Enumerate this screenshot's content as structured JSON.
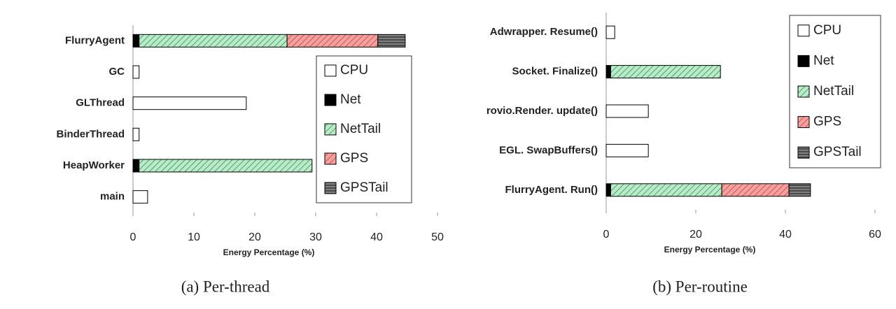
{
  "chart_data": [
    {
      "type": "barh-stacked",
      "caption": "(a)  Per-thread",
      "x_label": "Energy Percentage (%)",
      "categories": [
        "FlurryAgent",
        "GC",
        "GLThread",
        "BinderThread",
        "HeapWorker",
        "main"
      ],
      "series": [
        {
          "name": "CPU",
          "color": "#ffffff",
          "values": [
            0,
            1,
            18.6,
            1,
            0,
            2.4
          ]
        },
        {
          "name": "Net",
          "color": "#000000",
          "values": [
            1,
            0,
            0,
            0,
            1,
            0
          ]
        },
        {
          "name": "NetTail",
          "color": "#b8ecc8",
          "values": [
            24.3,
            0,
            0,
            0,
            28.4,
            0
          ]
        },
        {
          "name": "GPS",
          "color": "#f4a0a0",
          "values": [
            14.9,
            0,
            0,
            0,
            0,
            0
          ]
        },
        {
          "name": "GPSTail",
          "color": "#808080",
          "values": [
            4.5,
            0,
            0,
            0,
            0,
            0
          ]
        }
      ],
      "xlim": [
        0,
        50
      ],
      "xticks": [
        0,
        10,
        20,
        30,
        40,
        50
      ],
      "legend": "right"
    },
    {
      "type": "barh-stacked",
      "caption": "(b)  Per-routine",
      "x_label": "Energy Percentage (%)",
      "categories": [
        "Adwrapper. Resume()",
        "Socket. Finalize()",
        "rovio.Render. update()",
        "EGL. SwapBuffers()",
        "FlurryAgent. Run()"
      ],
      "series": [
        {
          "name": "CPU",
          "color": "#ffffff",
          "values": [
            1.9,
            0,
            9.4,
            9.4,
            0
          ]
        },
        {
          "name": "Net",
          "color": "#000000",
          "values": [
            0,
            1,
            0,
            0,
            1
          ]
        },
        {
          "name": "NetTail",
          "color": "#b8ecc8",
          "values": [
            0,
            24.5,
            0,
            0,
            24.8
          ]
        },
        {
          "name": "GPS",
          "color": "#f4a0a0",
          "values": [
            0,
            0,
            0,
            0,
            15
          ]
        },
        {
          "name": "GPSTail",
          "color": "#808080",
          "values": [
            0,
            0,
            0,
            0,
            4.8
          ]
        }
      ],
      "xlim": [
        0,
        60
      ],
      "xticks": [
        0,
        20,
        40,
        60
      ],
      "legend": "upper right"
    }
  ]
}
